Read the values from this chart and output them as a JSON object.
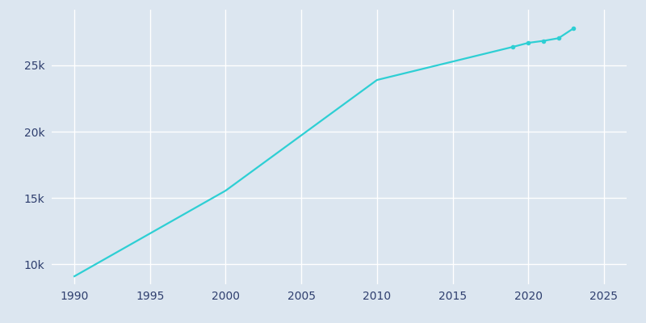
{
  "years": [
    1990,
    2000,
    2010,
    2019,
    2020,
    2021,
    2022,
    2023
  ],
  "population": [
    9100,
    15560,
    23900,
    26400,
    26700,
    26850,
    27050,
    27800
  ],
  "line_color": "#2ECFD4",
  "marker_color": "#2ECFD4",
  "bg_color": "#dce6f0",
  "plot_bg_color": "#dce6f0",
  "grid_color": "#FFFFFF",
  "text_color": "#2e3e6e",
  "xlim": [
    1988.5,
    2026.5
  ],
  "ylim": [
    8500,
    29200
  ],
  "xticks": [
    1990,
    1995,
    2000,
    2005,
    2010,
    2015,
    2020,
    2025
  ],
  "ytick_values": [
    10000,
    15000,
    20000,
    25000
  ],
  "ytick_labels": [
    "10k",
    "15k",
    "20k",
    "25k"
  ],
  "marker_years": [
    2019,
    2020,
    2021,
    2022,
    2023
  ]
}
